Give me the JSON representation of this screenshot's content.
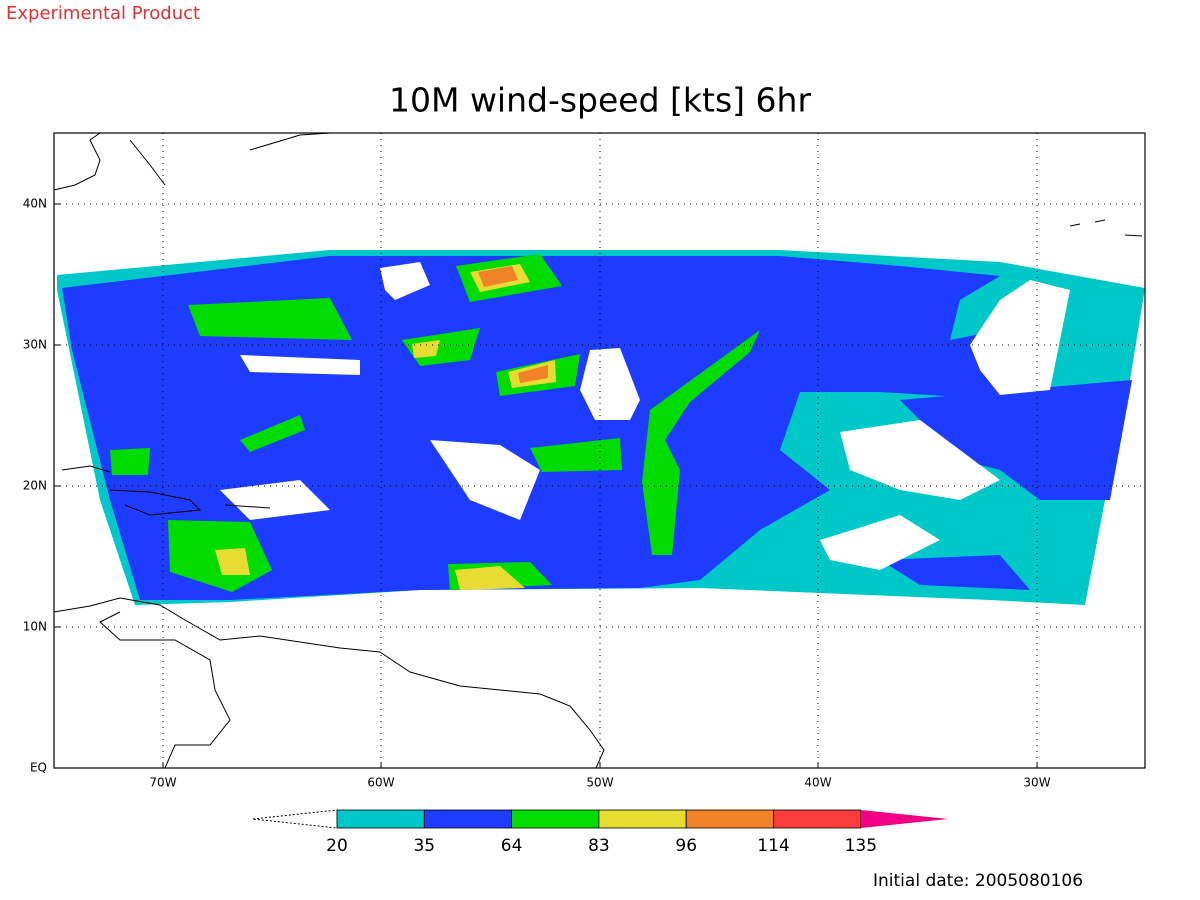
{
  "header": {
    "product": "Experimental Product"
  },
  "title": "10M wind-speed [kts] 6hr",
  "lat_labels": [
    "40N",
    "30N",
    "20N",
    "10N",
    "EQ"
  ],
  "lon_labels": [
    "70W",
    "60W",
    "50W",
    "40W",
    "30W"
  ],
  "colorbar": {
    "labels": [
      "20",
      "35",
      "64",
      "83",
      "96",
      "114",
      "135"
    ],
    "colors": [
      "#00c8c8",
      "#1e3cff",
      "#00dc00",
      "#e6dc32",
      "#f08228",
      "#fa3c3c",
      "#f00082"
    ]
  },
  "footer": {
    "initial_date": "Initial date: 2005080106"
  }
}
